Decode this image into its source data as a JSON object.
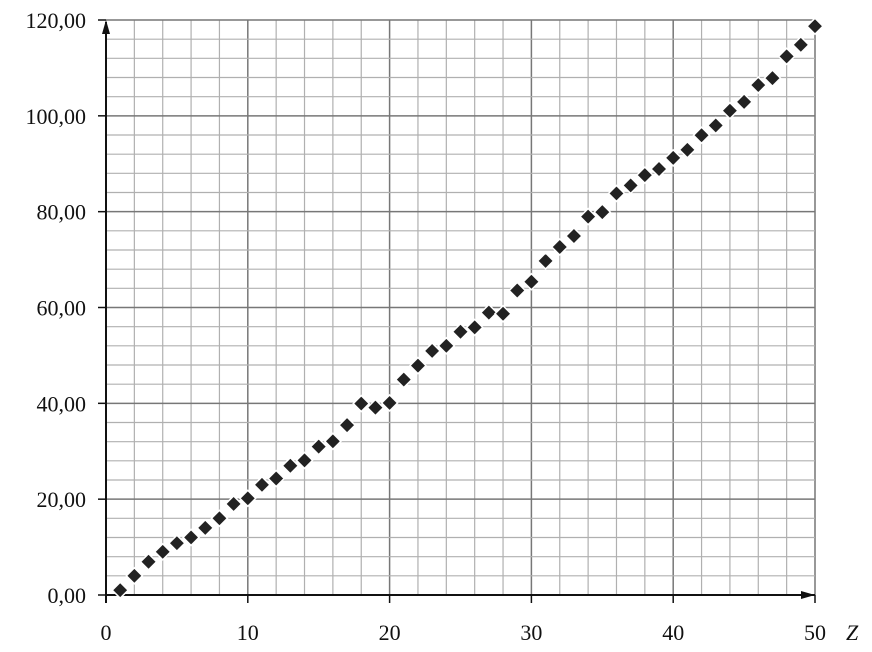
{
  "chart_data": {
    "type": "scatter",
    "title": "",
    "xlabel": "Z",
    "ylabel": "",
    "xlim": [
      0,
      50
    ],
    "ylim": [
      0,
      120
    ],
    "grid": true,
    "x_ticks": [
      "0",
      "10",
      "20",
      "30",
      "40",
      "50"
    ],
    "y_ticks": [
      "0,00",
      "20,00",
      "40,00",
      "60,00",
      "80,00",
      "100,00",
      "120,00"
    ],
    "marker": "diamond",
    "marker_color": "#222222",
    "grid_color": "#b0b0b0",
    "x": [
      1,
      2,
      3,
      4,
      5,
      6,
      7,
      8,
      9,
      10,
      11,
      12,
      13,
      14,
      15,
      16,
      17,
      18,
      19,
      20,
      21,
      22,
      23,
      24,
      25,
      26,
      27,
      28,
      29,
      30,
      31,
      32,
      33,
      34,
      35,
      36,
      37,
      38,
      39,
      40,
      41,
      42,
      43,
      44,
      45,
      46,
      47,
      48,
      49,
      50
    ],
    "y": [
      1.01,
      4.0,
      6.94,
      9.01,
      10.81,
      12.01,
      14.01,
      16.0,
      19.0,
      20.18,
      22.99,
      24.31,
      26.98,
      28.09,
      30.97,
      32.07,
      35.45,
      39.95,
      39.1,
      40.08,
      44.96,
      47.87,
      50.94,
      52.0,
      54.94,
      55.85,
      58.93,
      58.69,
      63.55,
      65.38,
      69.72,
      72.63,
      74.92,
      78.97,
      79.9,
      83.8,
      85.47,
      87.62,
      88.91,
      91.22,
      92.91,
      95.95,
      98.0,
      101.07,
      102.91,
      106.42,
      107.87,
      112.41,
      114.82,
      118.71
    ]
  }
}
